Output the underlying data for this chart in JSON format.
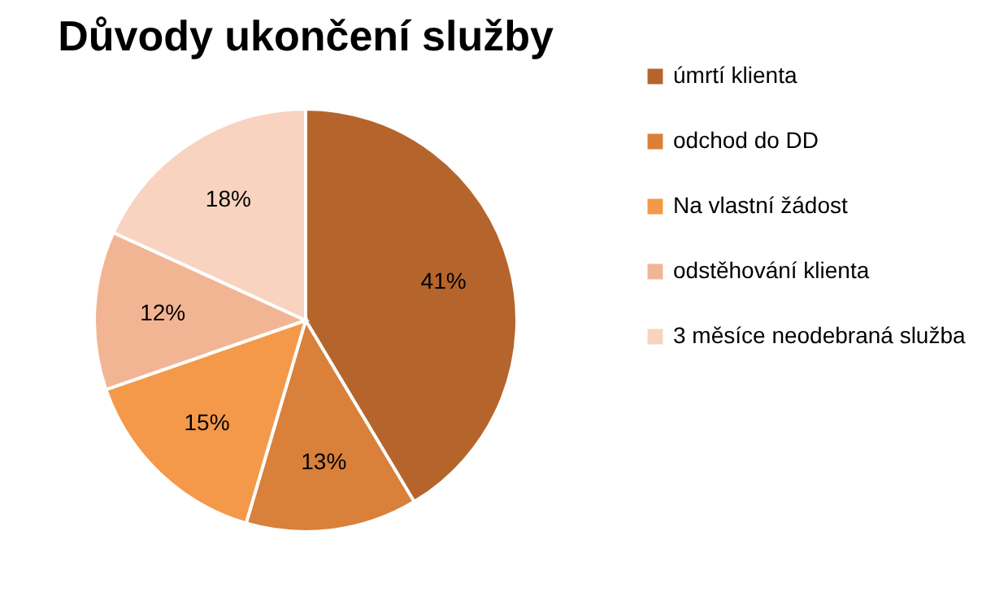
{
  "chart_data": {
    "type": "pie",
    "title": "Důvody ukončení služby",
    "categories": [
      "úmrtí klienta",
      "odchod do DD",
      "Na vlastní žádost",
      "odstěhování klienta",
      "3 měsíce neodebraná služba"
    ],
    "values": [
      41,
      13,
      15,
      12,
      18
    ],
    "colors": [
      "#b5652c",
      "#d9803a",
      "#f4994a",
      "#f2b594",
      "#f8d3c0"
    ],
    "value_labels": [
      "41%",
      "13%",
      "15%",
      "12%",
      "18%"
    ],
    "legend": "right"
  }
}
